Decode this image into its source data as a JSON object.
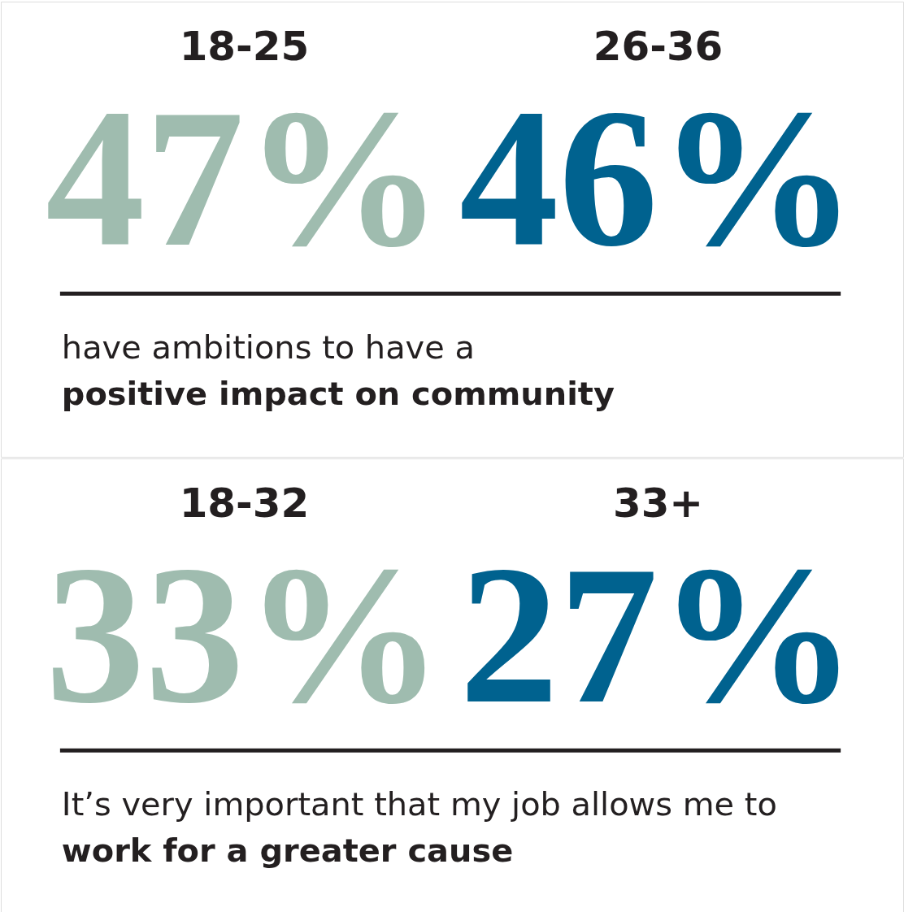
{
  "chart_data": [
    {
      "type": "other",
      "categories": [
        "18-25",
        "26-36"
      ],
      "values": [
        47,
        46
      ],
      "value_labels": [
        "47%",
        "46%"
      ],
      "colors": [
        "#9fbcaf",
        "#00628f"
      ],
      "annotations": [
        "have ambitions to have a",
        "positive impact on community"
      ]
    },
    {
      "type": "other",
      "categories": [
        "18-32",
        "33+"
      ],
      "values": [
        33,
        27
      ],
      "value_labels": [
        "33%",
        "27%"
      ],
      "colors": [
        "#9fbcaf",
        "#00628f"
      ],
      "annotations": [
        "It’s very important that my job allows me to",
        "work for a greater cause"
      ]
    }
  ]
}
